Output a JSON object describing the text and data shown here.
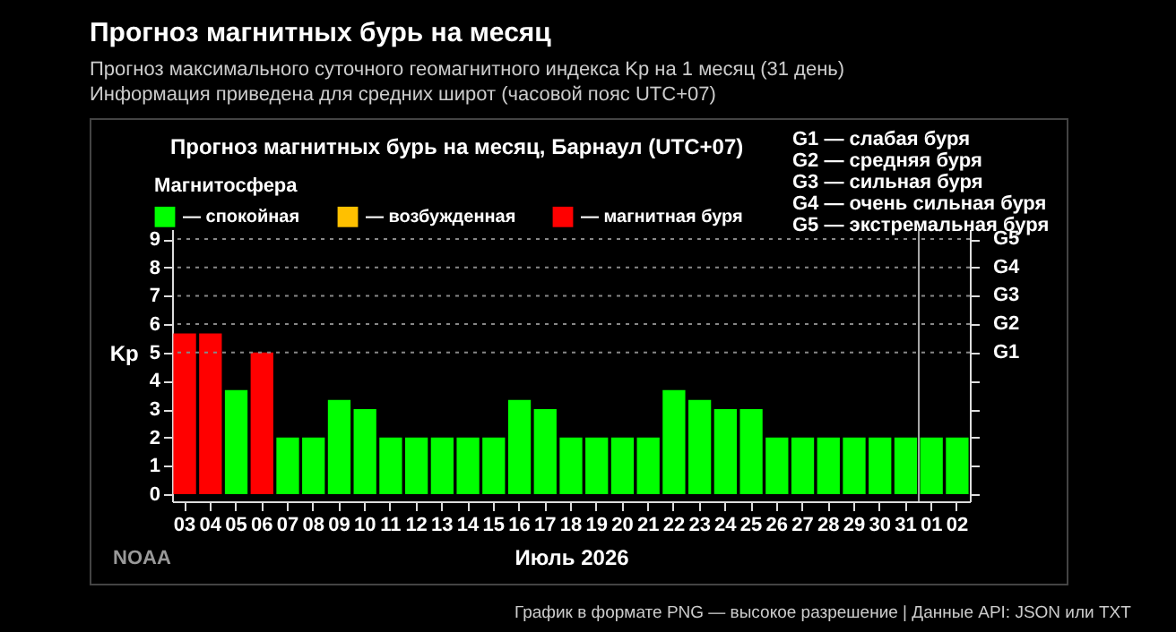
{
  "chart_data": {
    "type": "bar",
    "title": "Прогноз магнитных бурь на месяц, Барнаул (UTC+07)",
    "xlabel": "Июль 2026",
    "ylabel": "Kp",
    "legend_title": "Магнитосфера",
    "categories": [
      "03",
      "04",
      "05",
      "06",
      "07",
      "08",
      "09",
      "10",
      "11",
      "12",
      "13",
      "14",
      "15",
      "16",
      "17",
      "18",
      "19",
      "20",
      "21",
      "22",
      "23",
      "24",
      "25",
      "26",
      "27",
      "28",
      "29",
      "30",
      "31",
      "01",
      "02"
    ],
    "series": [
      {
        "name": "— спокойная",
        "color": "#00ff00",
        "values": [
          null,
          null,
          3.67,
          null,
          2,
          2,
          3.33,
          3,
          2,
          2,
          2,
          2,
          2,
          3.33,
          3,
          2,
          2,
          2,
          2,
          3.67,
          3.33,
          3,
          3,
          2,
          2,
          2,
          2,
          2,
          2,
          2,
          2
        ]
      },
      {
        "name": "— возбужденная",
        "color": "#ffc000",
        "values": [
          null,
          null,
          null,
          null,
          null,
          null,
          null,
          null,
          null,
          null,
          null,
          null,
          null,
          null,
          null,
          null,
          null,
          null,
          null,
          null,
          null,
          null,
          null,
          null,
          null,
          null,
          null,
          null,
          null,
          null,
          null
        ]
      },
      {
        "name": "— магнитная буря",
        "color": "#ff0000",
        "values": [
          5.67,
          5.67,
          null,
          5,
          null,
          null,
          null,
          null,
          null,
          null,
          null,
          null,
          null,
          null,
          null,
          null,
          null,
          null,
          null,
          null,
          null,
          null,
          null,
          null,
          null,
          null,
          null,
          null,
          null,
          null,
          null
        ]
      }
    ],
    "ylim": [
      -0.25,
      9.35
    ],
    "yticks": [
      0,
      1,
      2,
      3,
      4,
      5,
      6,
      7,
      8,
      9
    ],
    "ref_lines": [
      {
        "axis": "y",
        "value": 5,
        "label": "G1",
        "color": "#888888",
        "line_style": "dotted"
      },
      {
        "axis": "y",
        "value": 6,
        "label": "G2",
        "color": "#888888",
        "line_style": "dotted"
      },
      {
        "axis": "y",
        "value": 7,
        "label": "G3",
        "color": "#888888",
        "line_style": "dotted"
      },
      {
        "axis": "y",
        "value": 8,
        "label": "G4",
        "color": "#888888",
        "line_style": "dotted"
      },
      {
        "axis": "y",
        "value": 9,
        "label": "G5",
        "color": "#888888",
        "line_style": "dotted"
      },
      {
        "axis": "x",
        "value": "01",
        "label": null,
        "color": "#aaaaaa",
        "line_style": "solid"
      }
    ],
    "legend": "top left",
    "annotations": [
      "Прогноз магнитных бурь на месяц",
      "Прогноз максимального суточного геомагнитного индекса Kp на 1 месяц (31 день)",
      "Информация приведена для средних широт (часовой пояс UTC+07)",
      "G1 — слабая буря",
      "G2 — средняя буря",
      "G3 — сильная буря",
      "G4 — очень сильная буря",
      "G5 — экстремальная буря",
      "NOAA",
      "График в формате PNG — высокое разрешение  |  Данные API: JSON или TXT"
    ]
  }
}
